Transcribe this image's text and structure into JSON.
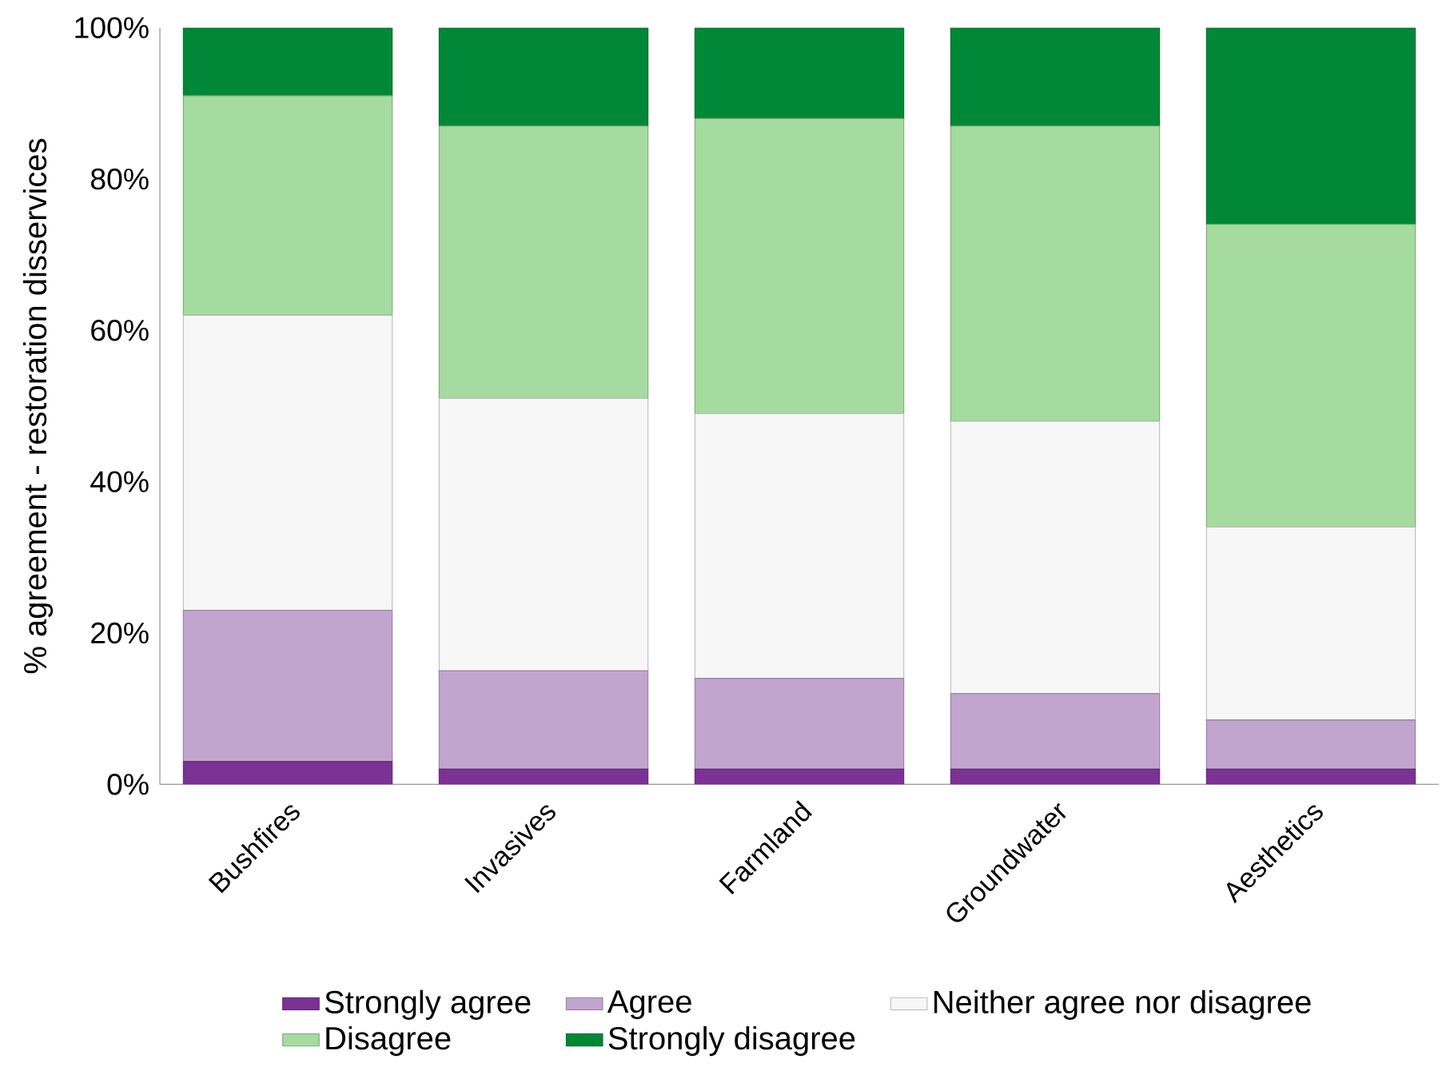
{
  "chart_data": {
    "type": "bar",
    "stacked": true,
    "ylabel": "% agreement - restoration disservices",
    "categories": [
      "Bushfires",
      "Invasives",
      "Farmland",
      "Groundwater",
      "Aesthetics"
    ],
    "series": [
      {
        "name": "Strongly agree",
        "color": "#7b3294",
        "values": [
          3,
          2,
          2,
          2,
          2
        ]
      },
      {
        "name": "Agree",
        "color": "#c2a5cf",
        "values": [
          20,
          13,
          12,
          10,
          6.5
        ]
      },
      {
        "name": "Neither agree nor disagree",
        "color": "#f7f7f7",
        "values": [
          39,
          36,
          35,
          36,
          25.5
        ]
      },
      {
        "name": "Disagree",
        "color": "#a6dba0",
        "values": [
          29,
          36,
          39,
          39,
          40
        ]
      },
      {
        "name": "Strongly disagree",
        "color": "#008837",
        "values": [
          9,
          13,
          12,
          13,
          26
        ]
      }
    ],
    "ylim": [
      0,
      100
    ],
    "yticks": [
      {
        "value": 0,
        "label": "0%"
      },
      {
        "value": 20,
        "label": "20%"
      },
      {
        "value": 40,
        "label": "40%"
      },
      {
        "value": 60,
        "label": "60%"
      },
      {
        "value": 80,
        "label": "80%"
      },
      {
        "value": 100,
        "label": "100%"
      }
    ],
    "legend": "bottom",
    "grid": false
  }
}
